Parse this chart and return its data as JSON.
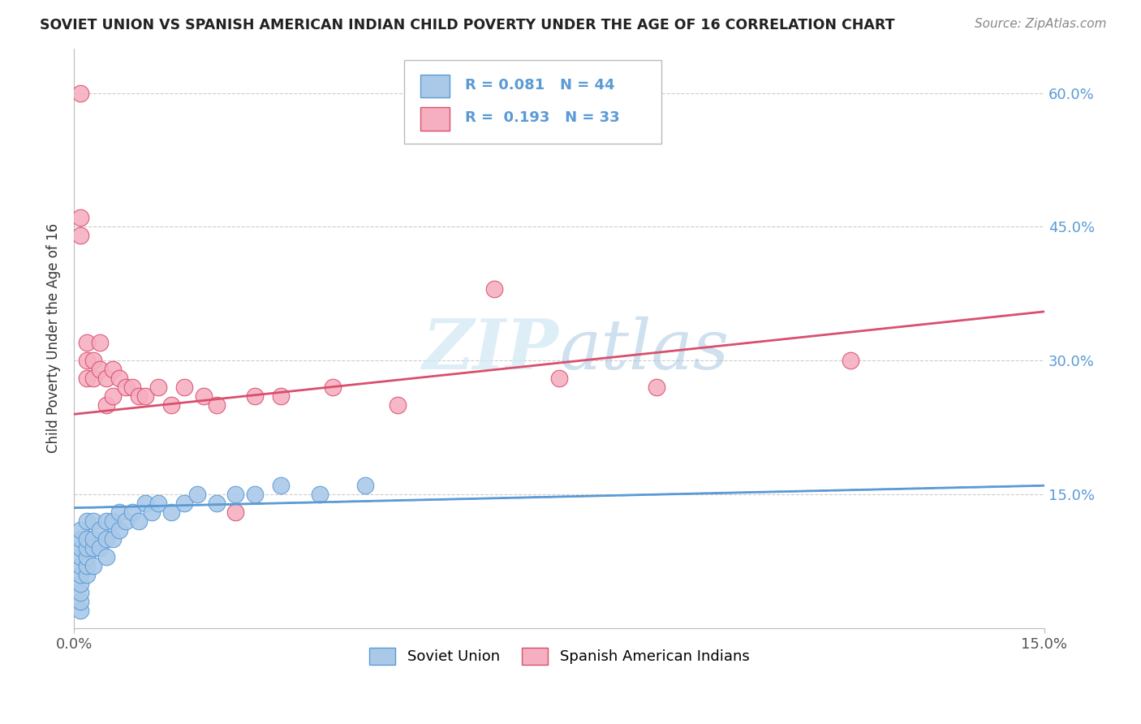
{
  "title": "SOVIET UNION VS SPANISH AMERICAN INDIAN CHILD POVERTY UNDER THE AGE OF 16 CORRELATION CHART",
  "source": "Source: ZipAtlas.com",
  "ylabel": "Child Poverty Under the Age of 16",
  "xlim": [
    0.0,
    0.15
  ],
  "ylim": [
    0.0,
    0.65
  ],
  "yticks": [
    0.0,
    0.15,
    0.3,
    0.45,
    0.6
  ],
  "xticks": [
    0.0,
    0.15
  ],
  "xtick_labels": [
    "0.0%",
    "15.0%"
  ],
  "right_ytick_labels": [
    "60.0%",
    "45.0%",
    "30.0%",
    "15.0%"
  ],
  "right_ytick_values": [
    0.6,
    0.45,
    0.3,
    0.15
  ],
  "series1_color": "#aac9e8",
  "series2_color": "#f5afc0",
  "trendline1_color": "#5b9bd5",
  "trendline2_color": "#d94f6e",
  "watermark": "ZIPatlas",
  "background_color": "#ffffff",
  "grid_color": "#cccccc",
  "series1_x": [
    0.001,
    0.001,
    0.001,
    0.001,
    0.001,
    0.001,
    0.001,
    0.001,
    0.001,
    0.001,
    0.002,
    0.002,
    0.002,
    0.002,
    0.002,
    0.002,
    0.003,
    0.003,
    0.003,
    0.003,
    0.004,
    0.004,
    0.005,
    0.005,
    0.005,
    0.006,
    0.006,
    0.007,
    0.007,
    0.008,
    0.009,
    0.01,
    0.011,
    0.012,
    0.013,
    0.015,
    0.017,
    0.019,
    0.022,
    0.025,
    0.028,
    0.032,
    0.038,
    0.045
  ],
  "series1_y": [
    0.02,
    0.03,
    0.04,
    0.05,
    0.06,
    0.07,
    0.08,
    0.09,
    0.1,
    0.11,
    0.06,
    0.07,
    0.08,
    0.09,
    0.1,
    0.12,
    0.07,
    0.09,
    0.1,
    0.12,
    0.09,
    0.11,
    0.08,
    0.1,
    0.12,
    0.1,
    0.12,
    0.11,
    0.13,
    0.12,
    0.13,
    0.12,
    0.14,
    0.13,
    0.14,
    0.13,
    0.14,
    0.15,
    0.14,
    0.15,
    0.15,
    0.16,
    0.15,
    0.16
  ],
  "series2_x": [
    0.001,
    0.001,
    0.001,
    0.002,
    0.002,
    0.002,
    0.003,
    0.003,
    0.004,
    0.004,
    0.005,
    0.005,
    0.006,
    0.006,
    0.007,
    0.008,
    0.009,
    0.01,
    0.011,
    0.013,
    0.015,
    0.017,
    0.02,
    0.022,
    0.025,
    0.028,
    0.032,
    0.04,
    0.05,
    0.065,
    0.075,
    0.09,
    0.12
  ],
  "series2_y": [
    0.6,
    0.44,
    0.46,
    0.28,
    0.3,
    0.32,
    0.28,
    0.3,
    0.29,
    0.32,
    0.25,
    0.28,
    0.26,
    0.29,
    0.28,
    0.27,
    0.27,
    0.26,
    0.26,
    0.27,
    0.25,
    0.27,
    0.26,
    0.25,
    0.13,
    0.26,
    0.26,
    0.27,
    0.25,
    0.38,
    0.28,
    0.27,
    0.3
  ],
  "trendline1_x": [
    0.0,
    0.15
  ],
  "trendline1_y": [
    0.135,
    0.16
  ],
  "trendline2_x": [
    0.0,
    0.15
  ],
  "trendline2_y": [
    0.24,
    0.355
  ]
}
